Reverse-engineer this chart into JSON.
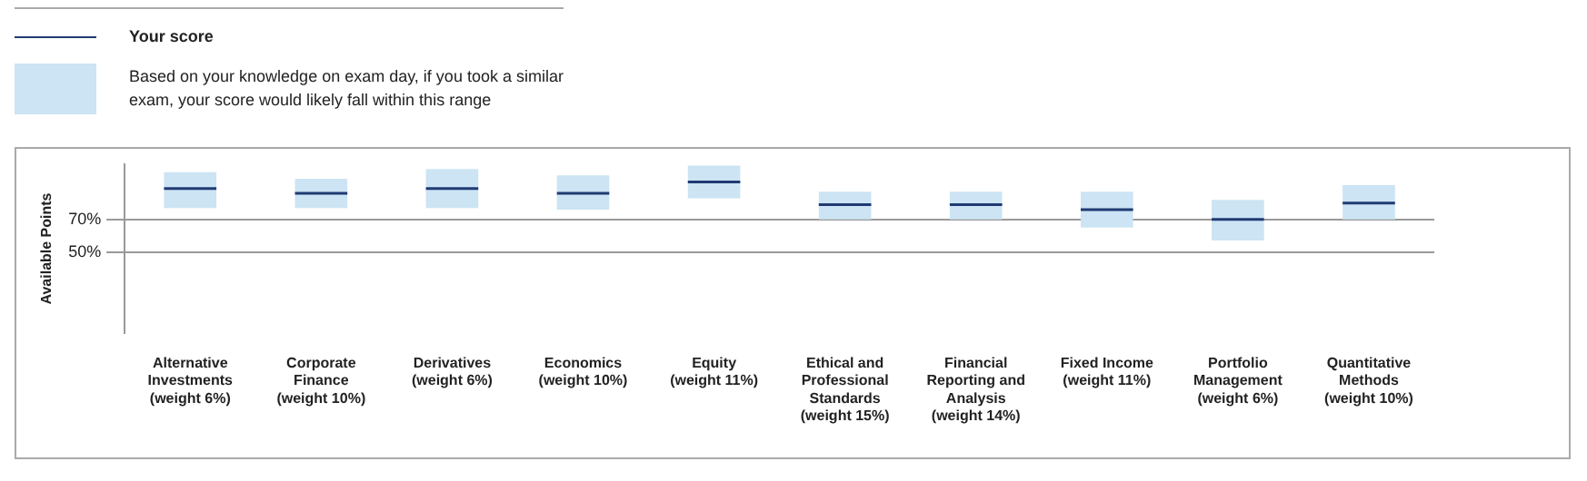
{
  "chart_data": {
    "type": "box",
    "ylabel": "Available Points",
    "categories": [
      "Alternative Investments (weight 6%)",
      "Corporate Finance (weight 10%)",
      "Derivatives (weight 6%)",
      "Economics (weight 10%)",
      "Equity (weight 11%)",
      "Ethical and Professional Standards (weight 15%)",
      "Financial Reporting and Analysis (weight 14%)",
      "Fixed Income (weight 11%)",
      "Portfolio Management (weight 6%)",
      "Quantitative Methods (weight 10%)"
    ],
    "series": [
      {
        "name": "Based on your knowledge on exam day, if you took a similar exam, your score would likely fall within this range",
        "color": "#cce4f3",
        "boxes": [
          {
            "low": 77,
            "q1": 77,
            "median": 89,
            "q3": 99,
            "high": 99
          },
          {
            "low": 77,
            "q1": 77,
            "median": 86,
            "q3": 95,
            "high": 95
          },
          {
            "low": 77,
            "q1": 77,
            "median": 89,
            "q3": 101,
            "high": 101
          },
          {
            "low": 76,
            "q1": 76,
            "median": 86,
            "q3": 97,
            "high": 97
          },
          {
            "low": 83,
            "q1": 83,
            "median": 93,
            "q3": 103,
            "high": 103
          },
          {
            "low": 70,
            "q1": 70,
            "median": 79,
            "q3": 87,
            "high": 87
          },
          {
            "low": 70,
            "q1": 70,
            "median": 79,
            "q3": 87,
            "high": 87
          },
          {
            "low": 65,
            "q1": 65,
            "median": 76,
            "q3": 87,
            "high": 87
          },
          {
            "low": 57,
            "q1": 57,
            "median": 70,
            "q3": 82,
            "high": 82
          },
          {
            "low": 70,
            "q1": 70,
            "median": 80,
            "q3": 91,
            "high": 91
          }
        ]
      }
    ],
    "annotations": [
      "Your score"
    ],
    "ylim": [
      0,
      104
    ],
    "yticks": [
      {
        "value": 50,
        "label": "50%"
      },
      {
        "value": 70,
        "label": "70%"
      }
    ],
    "grid": "y",
    "legend": "top left"
  }
}
